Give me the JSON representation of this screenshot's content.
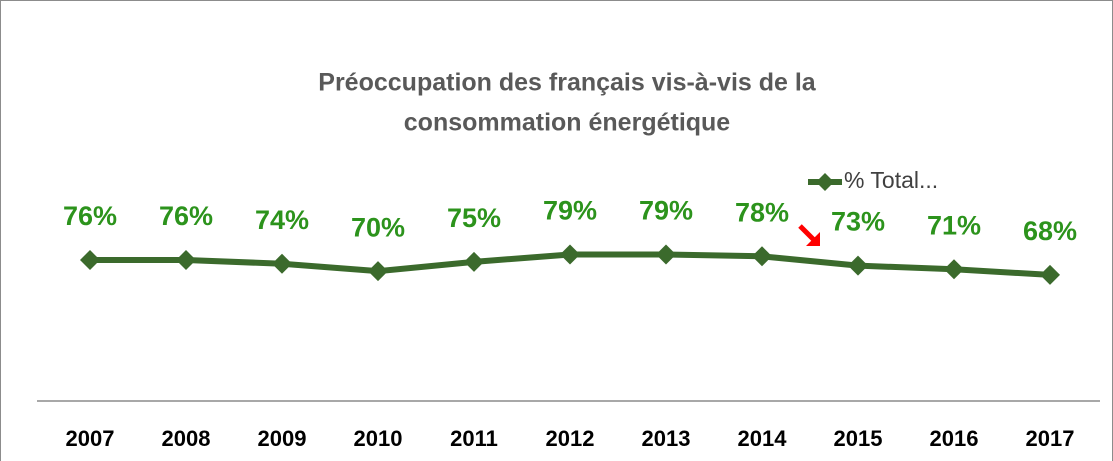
{
  "chart_data": {
    "type": "line",
    "title": [
      "Préoccupation des français vis-à-vis de la",
      "consommation énergétique"
    ],
    "categories": [
      "2007",
      "2008",
      "2009",
      "2010",
      "2011",
      "2012",
      "2013",
      "2014",
      "2015",
      "2016",
      "2017"
    ],
    "series": [
      {
        "name": "% Total...",
        "color": "#3b6a2c",
        "label_color": "#2c931c",
        "values": [
          76,
          76,
          74,
          70,
          75,
          79,
          79,
          78,
          73,
          71,
          68
        ],
        "value_labels": [
          "76%",
          "76%",
          "74%",
          "70%",
          "75%",
          "79%",
          "79%",
          "78%",
          "73%",
          "71%",
          "68%"
        ]
      }
    ],
    "ylim": [
      0,
      100
    ],
    "legend": "top-right"
  }
}
